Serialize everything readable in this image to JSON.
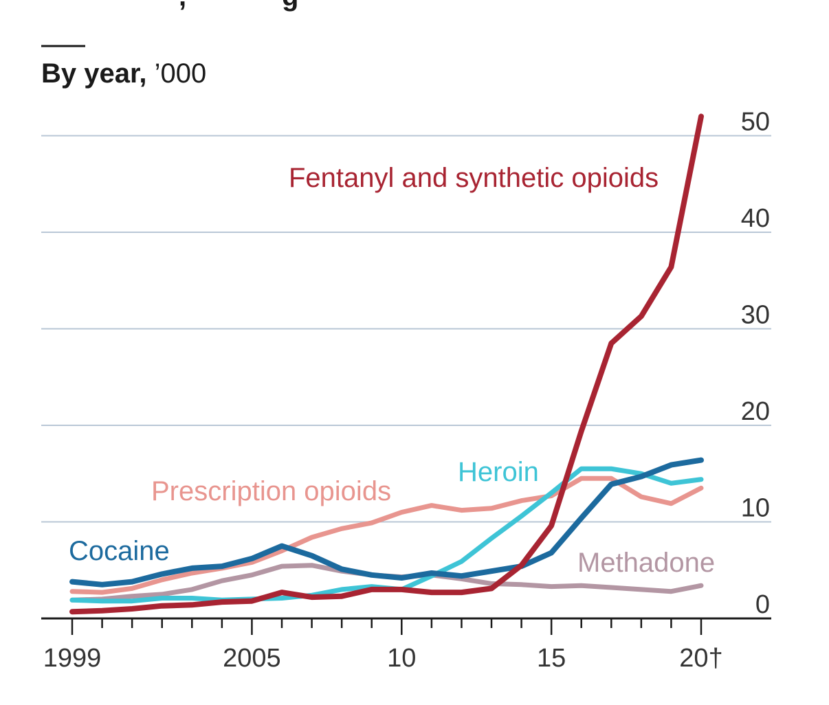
{
  "header": {
    "subtitle_bold": "By year,",
    "subtitle_unit": " ’000"
  },
  "chart_data": {
    "type": "line",
    "x": [
      1999,
      2000,
      2001,
      2002,
      2003,
      2004,
      2005,
      2006,
      2007,
      2008,
      2009,
      2010,
      2011,
      2012,
      2013,
      2014,
      2015,
      2016,
      2017,
      2018,
      2019,
      2020
    ],
    "x_ticks": [
      1999,
      2005,
      2010,
      2015,
      2020
    ],
    "x_tick_labels": [
      "1999",
      "2005",
      "10",
      "15",
      "20†"
    ],
    "y_ticks": [
      0,
      10,
      20,
      30,
      40,
      50
    ],
    "y_tick_labels": [
      "0",
      "10",
      "20",
      "30",
      "40",
      "50"
    ],
    "ylim": [
      0,
      52
    ],
    "ylabel": "",
    "xlabel": "",
    "title": "",
    "grid": true,
    "y_axis_position": "right",
    "series": [
      {
        "name": "Methadone",
        "color": "#b396a3",
        "values": [
          1.9,
          2.0,
          2.3,
          2.5,
          3.0,
          3.9,
          4.5,
          5.4,
          5.5,
          4.9,
          4.5,
          4.3,
          4.5,
          4.1,
          3.6,
          3.5,
          3.3,
          3.4,
          3.2,
          3.0,
          2.8,
          3.4
        ]
      },
      {
        "name": "Prescription opioids",
        "color": "#e8958f",
        "values": [
          2.8,
          2.7,
          3.1,
          4.0,
          4.7,
          5.2,
          5.8,
          7.0,
          8.4,
          9.3,
          9.9,
          11.0,
          11.7,
          11.2,
          11.4,
          12.2,
          12.7,
          14.5,
          14.5,
          12.6,
          11.9,
          13.5
        ]
      },
      {
        "name": "Heroin",
        "color": "#3ec4d6",
        "values": [
          1.9,
          1.8,
          1.8,
          2.1,
          2.1,
          1.9,
          2.0,
          2.1,
          2.4,
          3.0,
          3.3,
          3.0,
          4.4,
          5.9,
          8.3,
          10.6,
          13.0,
          15.5,
          15.5,
          15.0,
          14.0,
          14.4
        ]
      },
      {
        "name": "Cocaine",
        "color": "#1c6a9e",
        "values": [
          3.8,
          3.5,
          3.8,
          4.6,
          5.2,
          5.4,
          6.2,
          7.5,
          6.5,
          5.1,
          4.5,
          4.2,
          4.7,
          4.4,
          4.9,
          5.4,
          6.8,
          10.4,
          13.9,
          14.7,
          15.9,
          16.4
        ]
      },
      {
        "name": "Fentanyl and synthetic opioids",
        "color": "#a82432",
        "values": [
          0.7,
          0.8,
          1.0,
          1.3,
          1.4,
          1.7,
          1.8,
          2.7,
          2.2,
          2.3,
          3.0,
          3.0,
          2.7,
          2.7,
          3.1,
          5.5,
          9.6,
          19.4,
          28.5,
          31.3,
          36.4,
          52.0
        ]
      }
    ]
  }
}
